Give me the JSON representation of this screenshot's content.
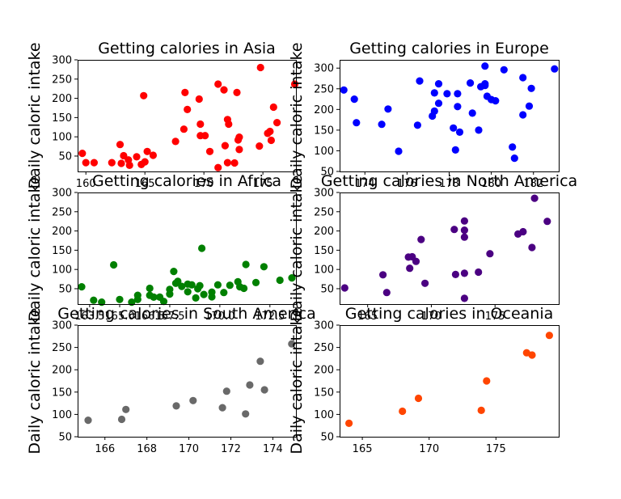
{
  "chart_data": [
    {
      "type": "scatter",
      "title": "Getting calories in Asia",
      "ylabel": "Daily caloric intake",
      "color": "#ff0000",
      "xlim": [
        159.3,
        177.8
      ],
      "ylim": [
        10,
        300
      ],
      "xticks": [
        160,
        165,
        170,
        175
      ],
      "yticks": [
        50,
        100,
        150,
        200,
        250,
        300
      ],
      "points": [
        [
          159.7,
          57
        ],
        [
          160.0,
          33
        ],
        [
          160.7,
          33
        ],
        [
          162.2,
          33
        ],
        [
          162.9,
          80
        ],
        [
          163.2,
          51
        ],
        [
          163.6,
          40
        ],
        [
          163.0,
          31
        ],
        [
          163.7,
          26
        ],
        [
          164.3,
          48
        ],
        [
          164.7,
          28
        ],
        [
          164.9,
          207
        ],
        [
          165.0,
          35
        ],
        [
          165.2,
          62
        ],
        [
          165.7,
          52
        ],
        [
          167.6,
          88
        ],
        [
          168.4,
          215
        ],
        [
          168.3,
          120
        ],
        [
          168.6,
          171
        ],
        [
          169.6,
          198
        ],
        [
          169.7,
          133
        ],
        [
          169.7,
          103
        ],
        [
          170.1,
          103
        ],
        [
          170.5,
          62
        ],
        [
          171.2,
          20
        ],
        [
          171.2,
          237
        ],
        [
          171.7,
          222
        ],
        [
          172.0,
          33
        ],
        [
          172.0,
          145
        ],
        [
          172.1,
          133
        ],
        [
          171.8,
          77
        ],
        [
          172.6,
          32
        ],
        [
          172.9,
          92
        ],
        [
          172.8,
          215
        ],
        [
          173.0,
          99
        ],
        [
          173.0,
          67
        ],
        [
          174.8,
          280
        ],
        [
          174.7,
          76
        ],
        [
          175.4,
          109
        ],
        [
          175.6,
          114
        ],
        [
          175.7,
          91
        ],
        [
          175.9,
          177
        ],
        [
          176.2,
          137
        ],
        [
          177.7,
          237
        ]
      ]
    },
    {
      "type": "scatter",
      "title": "Getting calories in Europe",
      "ylabel": "Daily caloric intake",
      "color": "#0000ff",
      "xlim": [
        172.8,
        183.2
      ],
      "ylim": [
        50,
        320
      ],
      "xticks": [
        174,
        176,
        178,
        180,
        182
      ],
      "yticks": [
        50,
        100,
        150,
        200,
        250,
        300
      ],
      "points": [
        [
          173.0,
          247
        ],
        [
          173.5,
          225
        ],
        [
          173.6,
          168
        ],
        [
          174.8,
          164
        ],
        [
          175.1,
          201
        ],
        [
          175.6,
          99
        ],
        [
          176.5,
          162
        ],
        [
          176.6,
          269
        ],
        [
          177.2,
          184
        ],
        [
          177.3,
          196
        ],
        [
          177.3,
          240
        ],
        [
          177.5,
          262
        ],
        [
          177.5,
          215
        ],
        [
          177.9,
          238
        ],
        [
          178.2,
          155
        ],
        [
          178.3,
          102
        ],
        [
          178.4,
          238
        ],
        [
          178.4,
          207
        ],
        [
          178.5,
          145
        ],
        [
          179.0,
          264
        ],
        [
          179.1,
          191
        ],
        [
          179.4,
          150
        ],
        [
          179.5,
          255
        ],
        [
          179.7,
          305
        ],
        [
          179.7,
          262
        ],
        [
          179.7,
          258
        ],
        [
          179.8,
          232
        ],
        [
          180.0,
          224
        ],
        [
          180.2,
          221
        ],
        [
          180.6,
          296
        ],
        [
          181.0,
          109
        ],
        [
          181.1,
          82
        ],
        [
          181.5,
          277
        ],
        [
          181.5,
          187
        ],
        [
          181.8,
          208
        ],
        [
          181.9,
          251
        ],
        [
          183.0,
          298
        ]
      ]
    },
    {
      "type": "scatter",
      "title": "Getting calories in Africa",
      "ylabel": "Daily caloric intake",
      "color": "#008000",
      "xlim": [
        162.9,
        173.8
      ],
      "ylim": [
        10,
        300
      ],
      "xticks": [
        163.5,
        165.0,
        166.5,
        167.5,
        170.0,
        172.5
      ],
      "xtick_labels": [
        "163.5",
        "165.0",
        "166.5",
        "167.5",
        "170.0",
        "172.5"
      ],
      "yticks": [
        50,
        100,
        150,
        200,
        250,
        300
      ],
      "points": [
        [
          163.1,
          55
        ],
        [
          163.7,
          20
        ],
        [
          164.1,
          15
        ],
        [
          164.7,
          112
        ],
        [
          165.0,
          22
        ],
        [
          165.6,
          15
        ],
        [
          165.9,
          22
        ],
        [
          165.9,
          33
        ],
        [
          166.5,
          51
        ],
        [
          166.5,
          33
        ],
        [
          166.7,
          28
        ],
        [
          167.0,
          28
        ],
        [
          167.2,
          17
        ],
        [
          167.5,
          36
        ],
        [
          167.5,
          48
        ],
        [
          167.7,
          95
        ],
        [
          167.8,
          64
        ],
        [
          167.9,
          69
        ],
        [
          168.1,
          56
        ],
        [
          168.4,
          62
        ],
        [
          168.4,
          42
        ],
        [
          168.6,
          60
        ],
        [
          168.8,
          26
        ],
        [
          168.9,
          50
        ],
        [
          169.0,
          58
        ],
        [
          169.1,
          155
        ],
        [
          169.2,
          35
        ],
        [
          169.6,
          41
        ],
        [
          169.6,
          29
        ],
        [
          169.9,
          60
        ],
        [
          170.2,
          40
        ],
        [
          170.5,
          59
        ],
        [
          170.9,
          68
        ],
        [
          171.0,
          55
        ],
        [
          171.3,
          113
        ],
        [
          171.2,
          51
        ],
        [
          171.8,
          66
        ],
        [
          172.2,
          107
        ],
        [
          173.0,
          72
        ],
        [
          173.6,
          78
        ]
      ]
    },
    {
      "type": "scatter",
      "title": "Getting calories in North America",
      "ylabel": "Daily caloric intake",
      "color": "#4b0082",
      "xlim": [
        162.8,
        180.0
      ],
      "ylim": [
        10,
        300
      ],
      "xticks": [
        165,
        170,
        175
      ],
      "yticks": [
        50,
        100,
        150,
        200,
        250,
        300
      ],
      "points": [
        [
          163.2,
          52
        ],
        [
          166.2,
          86
        ],
        [
          166.5,
          40
        ],
        [
          168.2,
          132
        ],
        [
          168.3,
          103
        ],
        [
          168.5,
          133
        ],
        [
          168.8,
          121
        ],
        [
          169.2,
          178
        ],
        [
          169.5,
          64
        ],
        [
          171.8,
          204
        ],
        [
          171.9,
          87
        ],
        [
          172.6,
          226
        ],
        [
          172.6,
          202
        ],
        [
          172.6,
          184
        ],
        [
          172.6,
          90
        ],
        [
          172.6,
          25
        ],
        [
          173.7,
          93
        ],
        [
          174.6,
          141
        ],
        [
          176.8,
          192
        ],
        [
          177.2,
          198
        ],
        [
          177.9,
          157
        ],
        [
          178.1,
          285
        ],
        [
          179.1,
          225
        ]
      ]
    },
    {
      "type": "scatter",
      "title": "Getting calories in South America",
      "ylabel": "Daily caloric intake",
      "color": "#696969",
      "xlim": [
        164.7,
        175.1
      ],
      "ylim": [
        50,
        300
      ],
      "xticks": [
        166,
        168,
        170,
        172,
        174
      ],
      "yticks": [
        50,
        100,
        150,
        200,
        250,
        300
      ],
      "points": [
        [
          165.2,
          87
        ],
        [
          166.8,
          89
        ],
        [
          167.0,
          111
        ],
        [
          169.4,
          119
        ],
        [
          170.2,
          131
        ],
        [
          171.6,
          115
        ],
        [
          171.8,
          152
        ],
        [
          172.7,
          101
        ],
        [
          172.9,
          166
        ],
        [
          173.4,
          219
        ],
        [
          173.6,
          155
        ],
        [
          174.9,
          258
        ]
      ]
    },
    {
      "type": "scatter",
      "title": "Getting calories in Oceania",
      "ylabel": "Daily caloric intake",
      "color": "#ff4500",
      "xlim": [
        163.3,
        179.7
      ],
      "ylim": [
        50,
        300
      ],
      "xticks": [
        165,
        170,
        175
      ],
      "yticks": [
        50,
        100,
        150,
        200,
        250,
        300
      ],
      "points": [
        [
          164.0,
          80
        ],
        [
          168.0,
          107
        ],
        [
          169.2,
          136
        ],
        [
          173.9,
          109
        ],
        [
          174.3,
          175
        ],
        [
          177.3,
          238
        ],
        [
          177.7,
          233
        ],
        [
          179.0,
          277
        ]
      ]
    }
  ]
}
